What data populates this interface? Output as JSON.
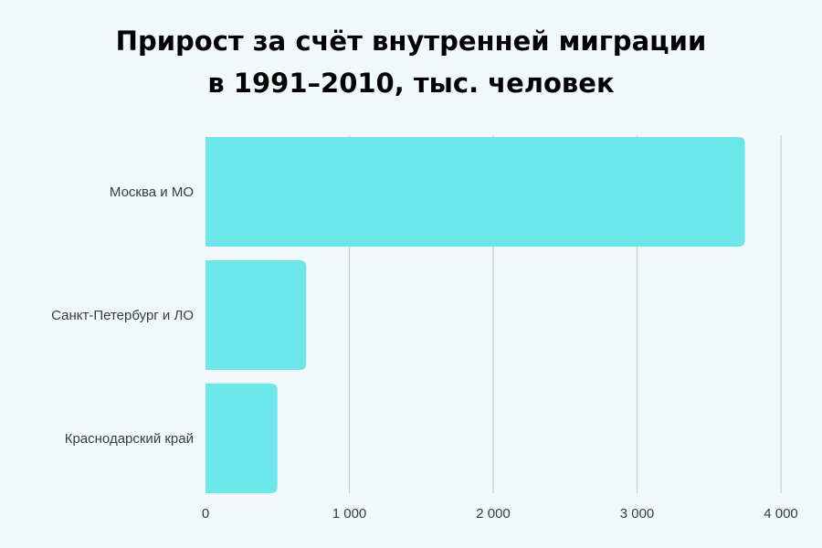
{
  "chart_data": {
    "type": "bar",
    "orientation": "horizontal",
    "title_lines": [
      "Прирост за счёт внутренней миграции",
      "в 1991–2010, тыс. человек"
    ],
    "categories": [
      "Москва и МО",
      "Санкт-Петербург и ЛО",
      "Краснодарский край"
    ],
    "values": [
      3750,
      700,
      500
    ],
    "xlim": [
      0,
      4000
    ],
    "xticks": [
      0,
      1000,
      2000,
      3000,
      4000
    ],
    "xtick_labels": [
      "0",
      "1 000",
      "2 000",
      "3 000",
      "4 000"
    ],
    "xlabel": "",
    "ylabel": "",
    "grid": "vertical",
    "bar_color": "#6ce6e8",
    "grid_color": "#c8ced0",
    "background": "#f2f9fb"
  }
}
